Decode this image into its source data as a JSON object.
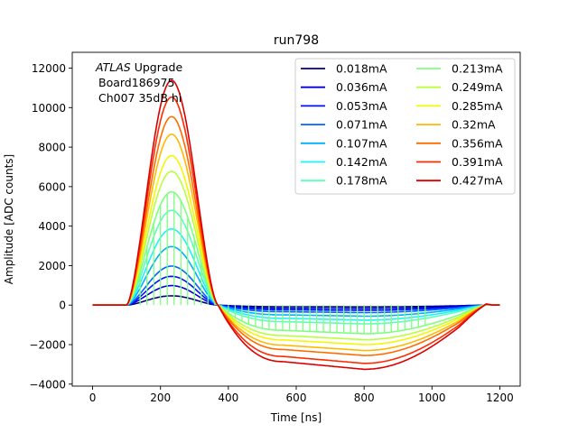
{
  "chart_data": {
    "type": "line",
    "title": "run798",
    "xlabel": "Time [ns]",
    "ylabel": "Amplitude [ADC counts]",
    "xlim": [
      -60,
      1260
    ],
    "ylim": [
      -4100,
      12800
    ],
    "xticks": [
      0,
      200,
      400,
      600,
      800,
      1000,
      1200
    ],
    "yticks": [
      -4000,
      -2000,
      0,
      2000,
      4000,
      6000,
      8000,
      10000,
      12000
    ],
    "grid": false,
    "legend_position": "upper-right",
    "legend_columns": 2,
    "annotation": {
      "italic": "ATLAS",
      "line1_rest": " Upgrade",
      "line2": "Board186975",
      "line3": "Ch007 35dB hi"
    },
    "series": [
      {
        "name": "0.018mA",
        "color": "#00007f",
        "peak": 500,
        "trough": -90
      },
      {
        "name": "0.036mA",
        "color": "#0000db",
        "peak": 1050,
        "trough": -180
      },
      {
        "name": "0.053mA",
        "color": "#0010ff",
        "peak": 1550,
        "trough": -270
      },
      {
        "name": "0.071mA",
        "color": "#0064ff",
        "peak": 2100,
        "trough": -380
      },
      {
        "name": "0.107mA",
        "color": "#00b0ff",
        "peak": 3150,
        "trough": -560
      },
      {
        "name": "0.142mA",
        "color": "#1cf2ff",
        "peak": 4100,
        "trough": -760
      },
      {
        "name": "0.178mA",
        "color": "#5cffba",
        "peak": 5100,
        "trough": -950
      },
      {
        "name": "0.213mA",
        "color": "#7fff7f",
        "peak": 6100,
        "trough": -1450,
        "spiky": true
      },
      {
        "name": "0.249mA",
        "color": "#b9ff3e",
        "peak": 7200,
        "trough": -1750
      },
      {
        "name": "0.285mA",
        "color": "#f4f802",
        "peak": 8050,
        "trough": -2000
      },
      {
        "name": "0.32mA",
        "color": "#ffb900",
        "peak": 9200,
        "trough": -2300
      },
      {
        "name": "0.356mA",
        "color": "#ff6c00",
        "peak": 10150,
        "trough": -2550
      },
      {
        "name": "0.391mA",
        "color": "#ff2a00",
        "peak": 11200,
        "trough": -2950
      },
      {
        "name": "0.427mA",
        "color": "#db0000",
        "peak": 12100,
        "trough": -3250
      }
    ]
  }
}
